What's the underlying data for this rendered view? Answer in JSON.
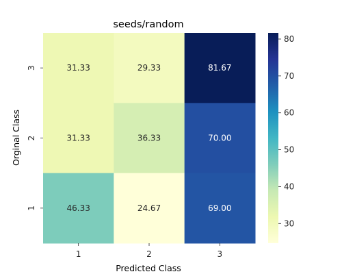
{
  "chart_data": {
    "type": "heatmap",
    "title": "seeds/random",
    "xlabel": "Predicted Class",
    "ylabel": "Orginal Class",
    "x_categories": [
      "1",
      "2",
      "3"
    ],
    "y_categories_top_to_bottom": [
      "3",
      "2",
      "1"
    ],
    "values_top_to_bottom": [
      [
        31.33,
        29.33,
        81.67
      ],
      [
        31.33,
        36.33,
        70.0
      ],
      [
        46.33,
        24.67,
        69.0
      ]
    ],
    "value_format": "0.00",
    "colormap": "YlGnBu",
    "colorbar": {
      "range": [
        24.67,
        81.67
      ],
      "ticks": [
        30,
        40,
        50,
        60,
        70,
        80
      ]
    }
  }
}
